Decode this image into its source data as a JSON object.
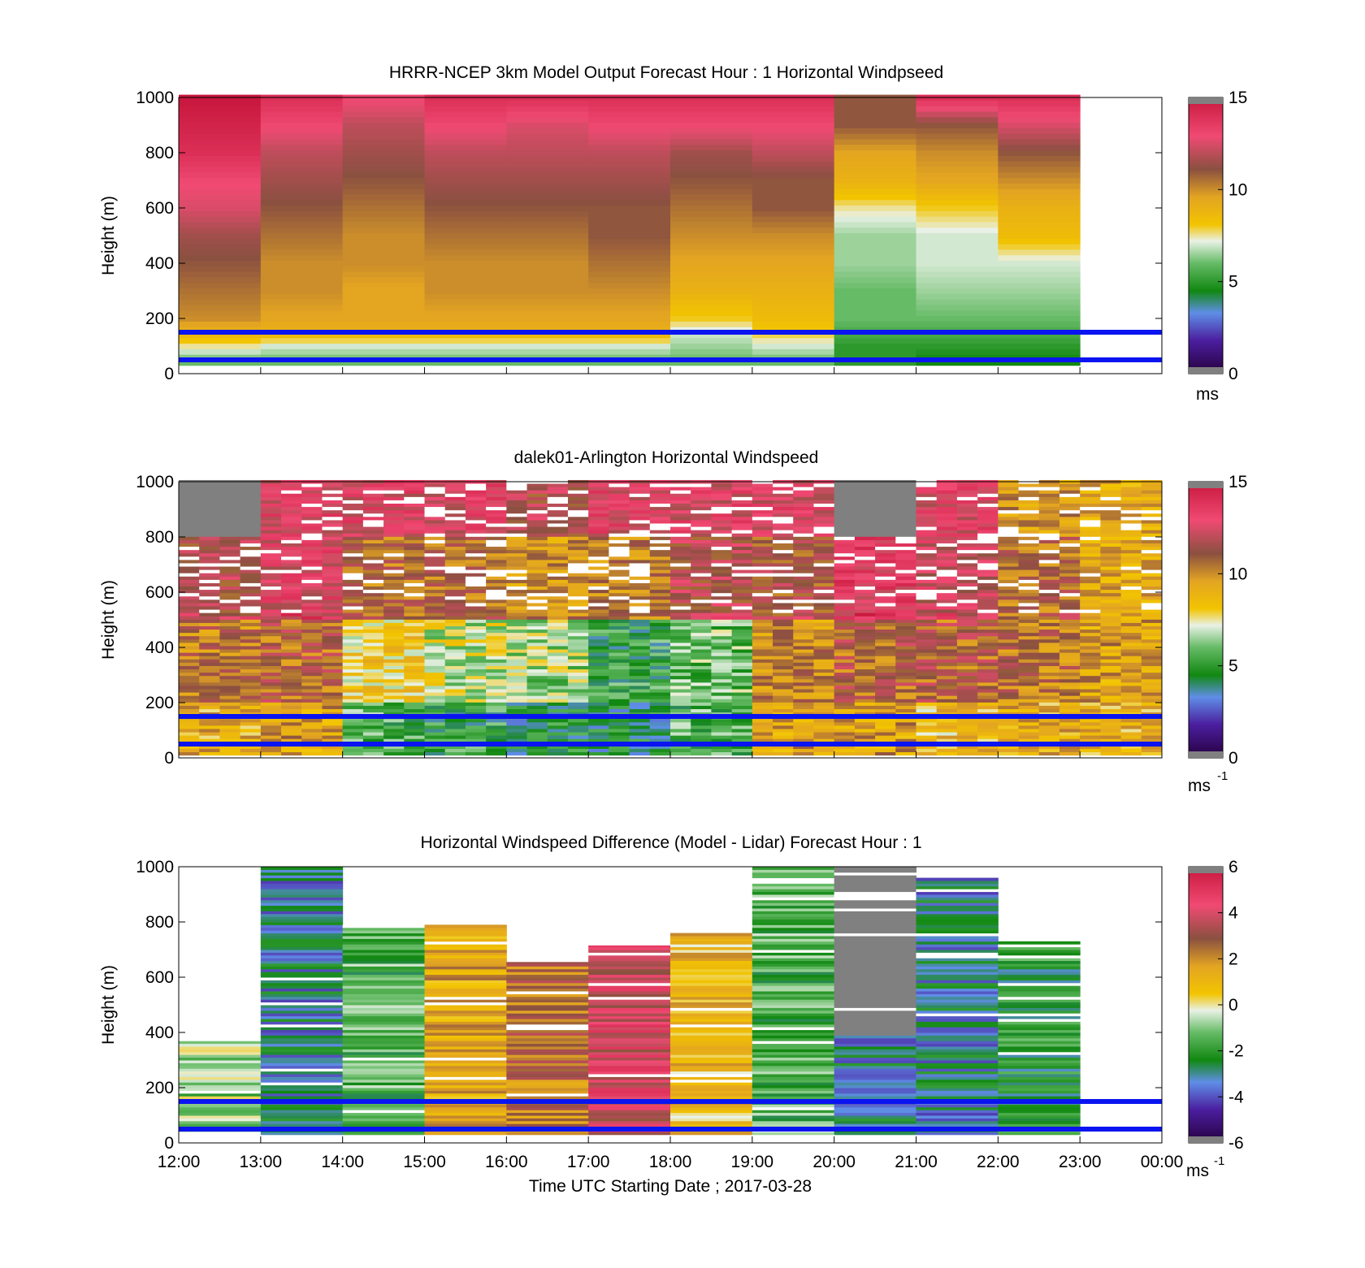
{
  "figure": {
    "xlabel": "Time UTC  Starting Date ; 2017-03-28",
    "time_ticks": [
      "12:00",
      "13:00",
      "14:00",
      "15:00",
      "16:00",
      "17:00",
      "18:00",
      "19:00",
      "20:00",
      "21:00",
      "22:00",
      "23:00",
      "00:00"
    ]
  },
  "colors": {
    "colormap": [
      "#3d3d3d",
      "#26003d",
      "#4b1e9f",
      "#5f8ee6",
      "#3a9a3a",
      "#118811",
      "#66bb66",
      "#a8d8a8",
      "#e9f1e6",
      "#f5e6a0",
      "#f2c400",
      "#e3a422",
      "#b87a36",
      "#8a5040",
      "#c74d69",
      "#f04a73",
      "#c8173d",
      "#8c8c8c"
    ],
    "reference_lines": "#0a14f0",
    "missing": "#808080"
  },
  "chart_data": [
    {
      "type": "heatmap",
      "title": "HRRR-NCEP 3km Model Output   Forecast Hour : 1 Horizontal Windpseed",
      "xlabel": "",
      "ylabel": "Height (m)",
      "xlim": [
        "12:00",
        "00:00"
      ],
      "ylim": [
        0,
        1000
      ],
      "yticks": [
        0,
        200,
        400,
        600,
        800,
        1000
      ],
      "colorbar": {
        "range": [
          0,
          15
        ],
        "ticks": [
          0,
          5,
          10,
          15
        ],
        "unit": "ms"
      },
      "reference_lines_m": [
        50,
        150
      ],
      "columns": [
        "12:00",
        "13:00",
        "14:00",
        "15:00",
        "16:00",
        "17:00",
        "18:00",
        "19:00",
        "20:00",
        "21:00",
        "22:00"
      ],
      "profiles_m_s": {
        "heights_m": [
          50,
          100,
          150,
          200,
          300,
          400,
          500,
          600,
          700,
          800,
          900,
          1000
        ],
        "12:00": [
          6,
          7.5,
          9,
          10,
          10.5,
          11,
          11.5,
          12.5,
          13,
          14,
          14.5,
          15
        ],
        "13:00": [
          6,
          7,
          9,
          9.5,
          10,
          10,
          10.5,
          11,
          11.5,
          12,
          13,
          14
        ],
        "14:00": [
          6,
          7,
          9,
          9.5,
          9.5,
          10,
          10,
          10.5,
          11,
          11.5,
          12,
          13
        ],
        "15:00": [
          6,
          7,
          9,
          9.5,
          10,
          10,
          10.5,
          11,
          11.5,
          12,
          13,
          14
        ],
        "16:00": [
          6,
          7,
          9,
          9.5,
          10,
          10,
          10.5,
          11,
          11.5,
          12,
          12.5,
          14
        ],
        "17:00": [
          6,
          7,
          9,
          9.5,
          10,
          10.5,
          11,
          11,
          11.5,
          12,
          13,
          14
        ],
        "18:00": [
          6,
          6.5,
          7,
          8,
          9,
          9.5,
          10,
          10.5,
          11,
          11.5,
          13,
          14
        ],
        "19:00": [
          6,
          7,
          8,
          8.5,
          9,
          9.5,
          10,
          11,
          11,
          12,
          13,
          14
        ],
        "20:00": [
          5,
          5,
          5.5,
          6,
          6,
          6.5,
          6.5,
          7.5,
          9,
          9.5,
          11,
          11
        ],
        "21:00": [
          4.5,
          5,
          5.5,
          6,
          6.5,
          7,
          7,
          8,
          9.5,
          10,
          11,
          14
        ],
        "22:00": [
          4.5,
          5,
          5.5,
          6,
          6.5,
          7,
          8.5,
          9,
          10,
          11,
          12.5,
          14
        ]
      }
    },
    {
      "type": "heatmap",
      "title": "dalek01-Arlington  Horizontal Windspeed",
      "xlabel": "",
      "ylabel": "Height (m)",
      "xlim": [
        "12:00",
        "00:00"
      ],
      "ylim": [
        0,
        1000
      ],
      "yticks": [
        0,
        200,
        400,
        600,
        800,
        1000
      ],
      "colorbar": {
        "range": [
          0,
          15
        ],
        "ticks": [
          0,
          5,
          10,
          15
        ],
        "unit": "ms",
        "unit_exponent": "-1"
      },
      "reference_lines_m": [
        50,
        150
      ],
      "profiles_m_s": {
        "times": [
          "12:00",
          "13:00",
          "14:00",
          "15:00",
          "16:00",
          "17:00",
          "18:00",
          "19:00",
          "20:00",
          "21:00",
          "22:00",
          "23:00"
        ],
        "below_200m": [
          9,
          9.5,
          5.5,
          5,
          4.5,
          4.5,
          5.5,
          9.5,
          9.5,
          8.5,
          9,
          9
        ],
        "200_to_500m": [
          10.5,
          11,
          8,
          7,
          6.5,
          5,
          6,
          10,
          11,
          11,
          10.5,
          9.5
        ],
        "500_to_800m": [
          12,
          13,
          11,
          11,
          10,
          10.5,
          12,
          11.5,
          13.5,
          12.5,
          11,
          9.5
        ],
        "above_800m": [
          null,
          13,
          13,
          13,
          12,
          13,
          13,
          13,
          null,
          13,
          10,
          9.5
        ]
      }
    },
    {
      "type": "heatmap",
      "title": "Horizontal Windspeed Difference (Model - Lidar) Forecast Hour : 1",
      "xlabel": "Time UTC  Starting Date ; 2017-03-28",
      "ylabel": "Height (m)",
      "xlim": [
        "12:00",
        "00:00"
      ],
      "ylim": [
        0,
        1000
      ],
      "yticks": [
        0,
        200,
        400,
        600,
        800,
        1000
      ],
      "colorbar": {
        "range": [
          -6,
          6
        ],
        "ticks": [
          -6,
          -4,
          -2,
          0,
          2,
          4,
          6
        ],
        "unit": "ms",
        "unit_exponent": "-1"
      },
      "reference_lines_m": [
        50,
        150
      ],
      "columns": [
        {
          "time": "12:00",
          "top_m": 375,
          "mean_ms": -0.8
        },
        {
          "time": "13:00",
          "top_m": 1000,
          "mean_ms": -3
        },
        {
          "time": "14:00",
          "top_m": 790,
          "mean_ms": -1.5
        },
        {
          "time": "15:00",
          "top_m": 790,
          "mean_ms": 1.5
        },
        {
          "time": "16:00",
          "top_m": 655,
          "mean_ms": 2.5
        },
        {
          "time": "17:00",
          "top_m": 715,
          "mean_ms": 4
        },
        {
          "time": "18:00",
          "top_m": 760,
          "mean_ms": 1
        },
        {
          "time": "19:00",
          "top_m": 1000,
          "mean_ms": -1.5
        },
        {
          "time": "20:00",
          "top_m": 1000,
          "mean_ms": -3
        },
        {
          "time": "21:00",
          "top_m": 960,
          "mean_ms": -3
        },
        {
          "time": "22:00",
          "top_m": 730,
          "mean_ms": -2
        }
      ]
    }
  ]
}
